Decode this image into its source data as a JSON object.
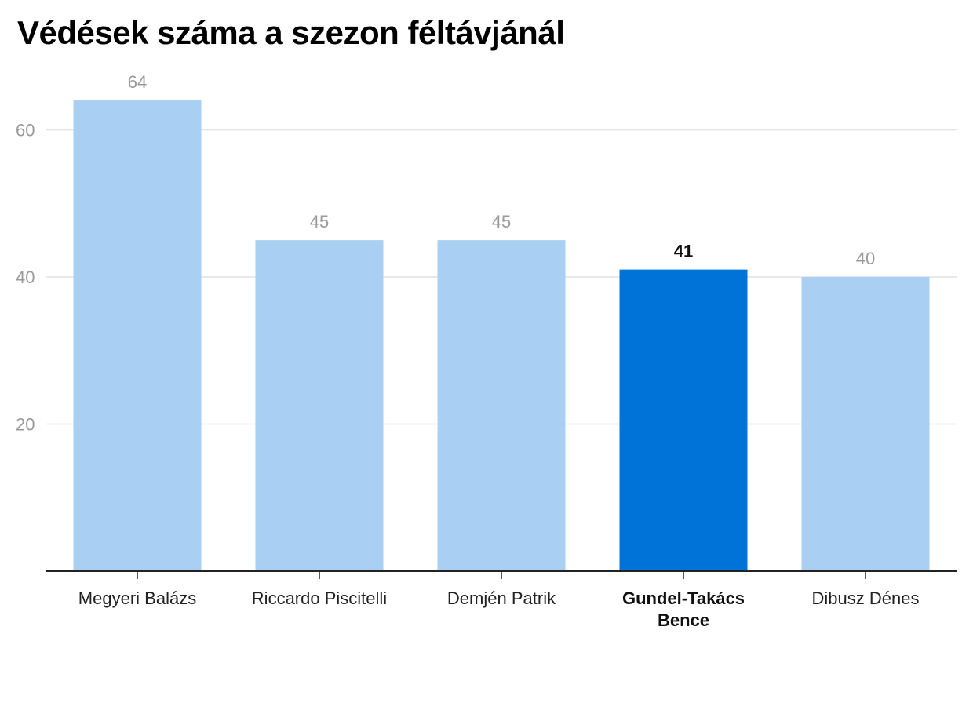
{
  "chart_data": {
    "type": "bar",
    "title": "Védések száma a szezon féltávjánál",
    "xlabel": "",
    "ylabel": "",
    "categories": [
      "Megyeri Balázs",
      "Riccardo Piscitelli",
      "Demjén Patrik",
      "Gundel-Takács Bence",
      "Dibusz Dénes"
    ],
    "category_lines": [
      [
        "Megyeri Balázs"
      ],
      [
        "Riccardo Piscitelli"
      ],
      [
        "Demjén Patrik"
      ],
      [
        "Gundel-Takács",
        "Bence"
      ],
      [
        "Dibusz Dénes"
      ]
    ],
    "values": [
      64,
      45,
      45,
      41,
      40
    ],
    "value_labels": [
      "64",
      "45",
      "45",
      "41",
      "40"
    ],
    "highlight_index": 3,
    "ylim": [
      0,
      70
    ],
    "yticks": [
      20,
      40,
      60
    ],
    "grid": true,
    "legend": "none",
    "colors": {
      "bar": "#a9cff2",
      "highlight": "#0073d9",
      "grid": "#e2e2e2",
      "axis": "#222222"
    }
  }
}
